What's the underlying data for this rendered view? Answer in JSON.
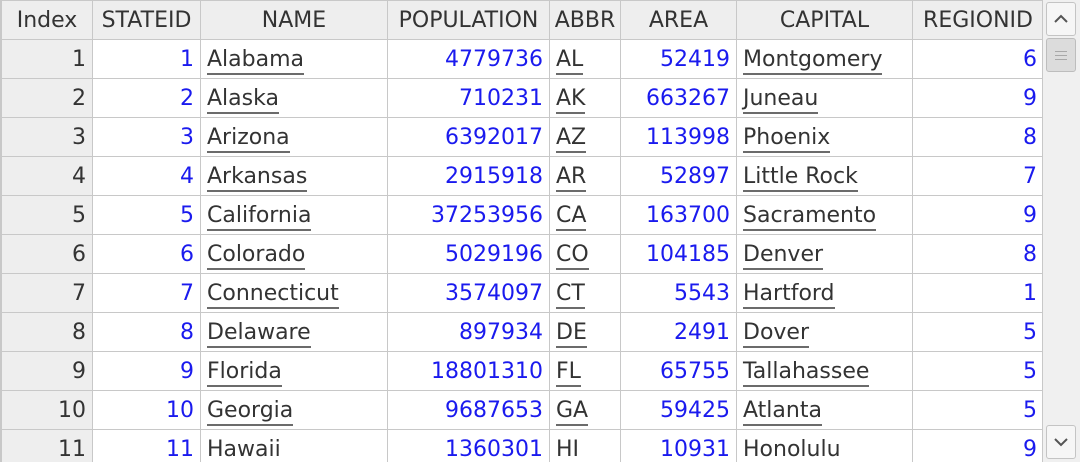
{
  "table": {
    "columns": [
      "Index",
      "STATEID",
      "NAME",
      "POPULATION",
      "ABBR",
      "AREA",
      "CAPITAL",
      "REGIONID"
    ],
    "rows": [
      [
        "1",
        "1",
        "Alabama",
        "4779736",
        "AL",
        "52419",
        "Montgomery",
        "6"
      ],
      [
        "2",
        "2",
        "Alaska",
        "710231",
        "AK",
        "663267",
        "Juneau",
        "9"
      ],
      [
        "3",
        "3",
        "Arizona",
        "6392017",
        "AZ",
        "113998",
        "Phoenix",
        "8"
      ],
      [
        "4",
        "4",
        "Arkansas",
        "2915918",
        "AR",
        "52897",
        "Little Rock",
        "7"
      ],
      [
        "5",
        "5",
        "California",
        "37253956",
        "CA",
        "163700",
        "Sacramento",
        "9"
      ],
      [
        "6",
        "6",
        "Colorado",
        "5029196",
        "CO",
        "104185",
        "Denver",
        "8"
      ],
      [
        "7",
        "7",
        "Connecticut",
        "3574097",
        "CT",
        "5543",
        "Hartford",
        "1"
      ],
      [
        "8",
        "8",
        "Delaware",
        "897934",
        "DE",
        "2491",
        "Dover",
        "5"
      ],
      [
        "9",
        "9",
        "Florida",
        "18801310",
        "FL",
        "65755",
        "Tallahassee",
        "5"
      ],
      [
        "10",
        "10",
        "Georgia",
        "9687653",
        "GA",
        "59425",
        "Atlanta",
        "5"
      ],
      [
        "11",
        "11",
        "Hawaii",
        "1360301",
        "HI",
        "10931",
        "Honolulu",
        "9"
      ]
    ]
  },
  "scrollbar": {
    "up_icon": "chevron-up-icon",
    "down_icon": "chevron-down-icon",
    "position": 0
  },
  "colors": {
    "number_text": "#1a1aee",
    "plain_text": "#333333",
    "header_bg": "#eeeeee",
    "grid_line": "#c8c8c8"
  }
}
